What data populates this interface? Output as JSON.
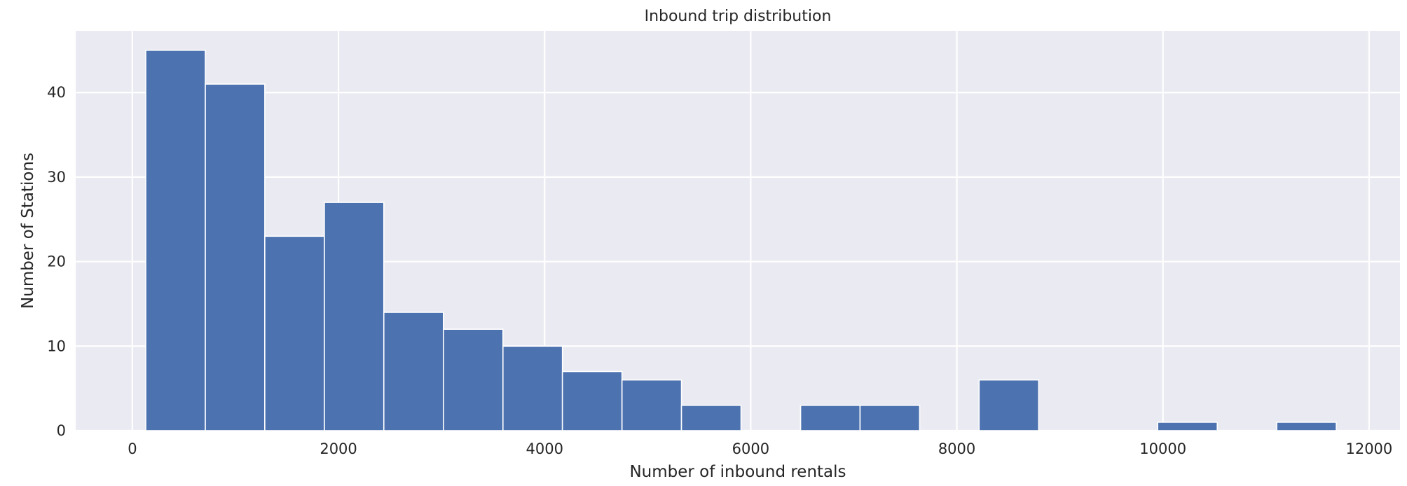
{
  "chart_data": {
    "type": "bar",
    "title": "Inbound trip distribution",
    "xlabel": "Number of inbound rentals",
    "ylabel": "Number of Stations",
    "xlim": [
      -550,
      12300
    ],
    "ylim": [
      0,
      47.3
    ],
    "xticks": [
      0,
      2000,
      4000,
      6000,
      8000,
      10000,
      12000
    ],
    "yticks": [
      0,
      10,
      20,
      30,
      40
    ],
    "grid": true,
    "bar_color": "#4c72b0",
    "background_color": "#eaeaf2",
    "bins": [
      {
        "x0": 130,
        "x1": 708,
        "count": 45
      },
      {
        "x0": 708,
        "x1": 1285,
        "count": 41
      },
      {
        "x0": 1285,
        "x1": 1863,
        "count": 23
      },
      {
        "x0": 1863,
        "x1": 2440,
        "count": 27
      },
      {
        "x0": 2440,
        "x1": 3018,
        "count": 14
      },
      {
        "x0": 3018,
        "x1": 3596,
        "count": 12
      },
      {
        "x0": 3596,
        "x1": 4173,
        "count": 10
      },
      {
        "x0": 4173,
        "x1": 4751,
        "count": 7
      },
      {
        "x0": 4751,
        "x1": 5328,
        "count": 6
      },
      {
        "x0": 5328,
        "x1": 5906,
        "count": 3
      },
      {
        "x0": 5906,
        "x1": 6484,
        "count": 0
      },
      {
        "x0": 6484,
        "x1": 7061,
        "count": 3
      },
      {
        "x0": 7061,
        "x1": 7639,
        "count": 3
      },
      {
        "x0": 7639,
        "x1": 8216,
        "count": 0
      },
      {
        "x0": 8216,
        "x1": 8794,
        "count": 6
      },
      {
        "x0": 8794,
        "x1": 9372,
        "count": 0
      },
      {
        "x0": 9372,
        "x1": 9949,
        "count": 0
      },
      {
        "x0": 9949,
        "x1": 10527,
        "count": 1
      },
      {
        "x0": 10527,
        "x1": 11104,
        "count": 0
      },
      {
        "x0": 11104,
        "x1": 11682,
        "count": 1
      }
    ]
  }
}
